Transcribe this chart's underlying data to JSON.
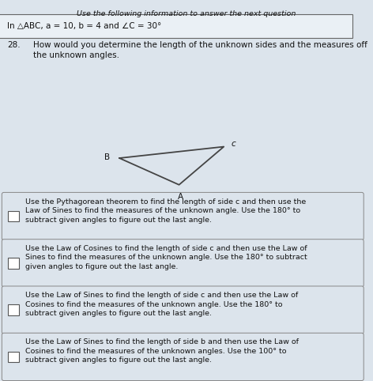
{
  "title": "Use the following information to answer the next question",
  "info_box": "In △ABC, a = 10, b = 4 and ∠C = 30°",
  "question_num": "28.",
  "question_text": "How would you determine the length of the unknown sides and the measures off\nthe unknown angles.",
  "options": [
    "Use the Pythagorean theorem to find the length of side c and then use the\nLaw of Sines to find the measures of the unknown angle. Use the 180° to\nsubtract given angles to figure out the last angle.",
    "Use the Law of Cosines to find the length of side c and then use the Law of\nSines to find the measures of the unknown angle. Use the 180° to subtract\ngiven angles to figure out the last angle.",
    "Use the Law of Sines to find the length of side c and then use the Law of\nCosines to find the measures of the unknown angle. Use the 180° to\nsubtract given angles to figure out the last angle.",
    "Use the Law of Sines to find the length of side b and then use the Law of\nCosines to find the measures of the unknown angles. Use the 100° to\nsubtract given angles to figure out the last angle."
  ],
  "bg_color": "#c8cfd8",
  "main_bg": "#dce4ec",
  "info_bg": "#dce4ec",
  "option_bg": "#dce4ec",
  "text_color": "#111111",
  "font_size_title": 6.8,
  "font_size_info": 7.5,
  "font_size_question": 7.5,
  "font_size_options": 6.8,
  "triangle_B": [
    0.32,
    0.585
  ],
  "triangle_C": [
    0.6,
    0.615
  ],
  "triangle_A": [
    0.48,
    0.515
  ]
}
